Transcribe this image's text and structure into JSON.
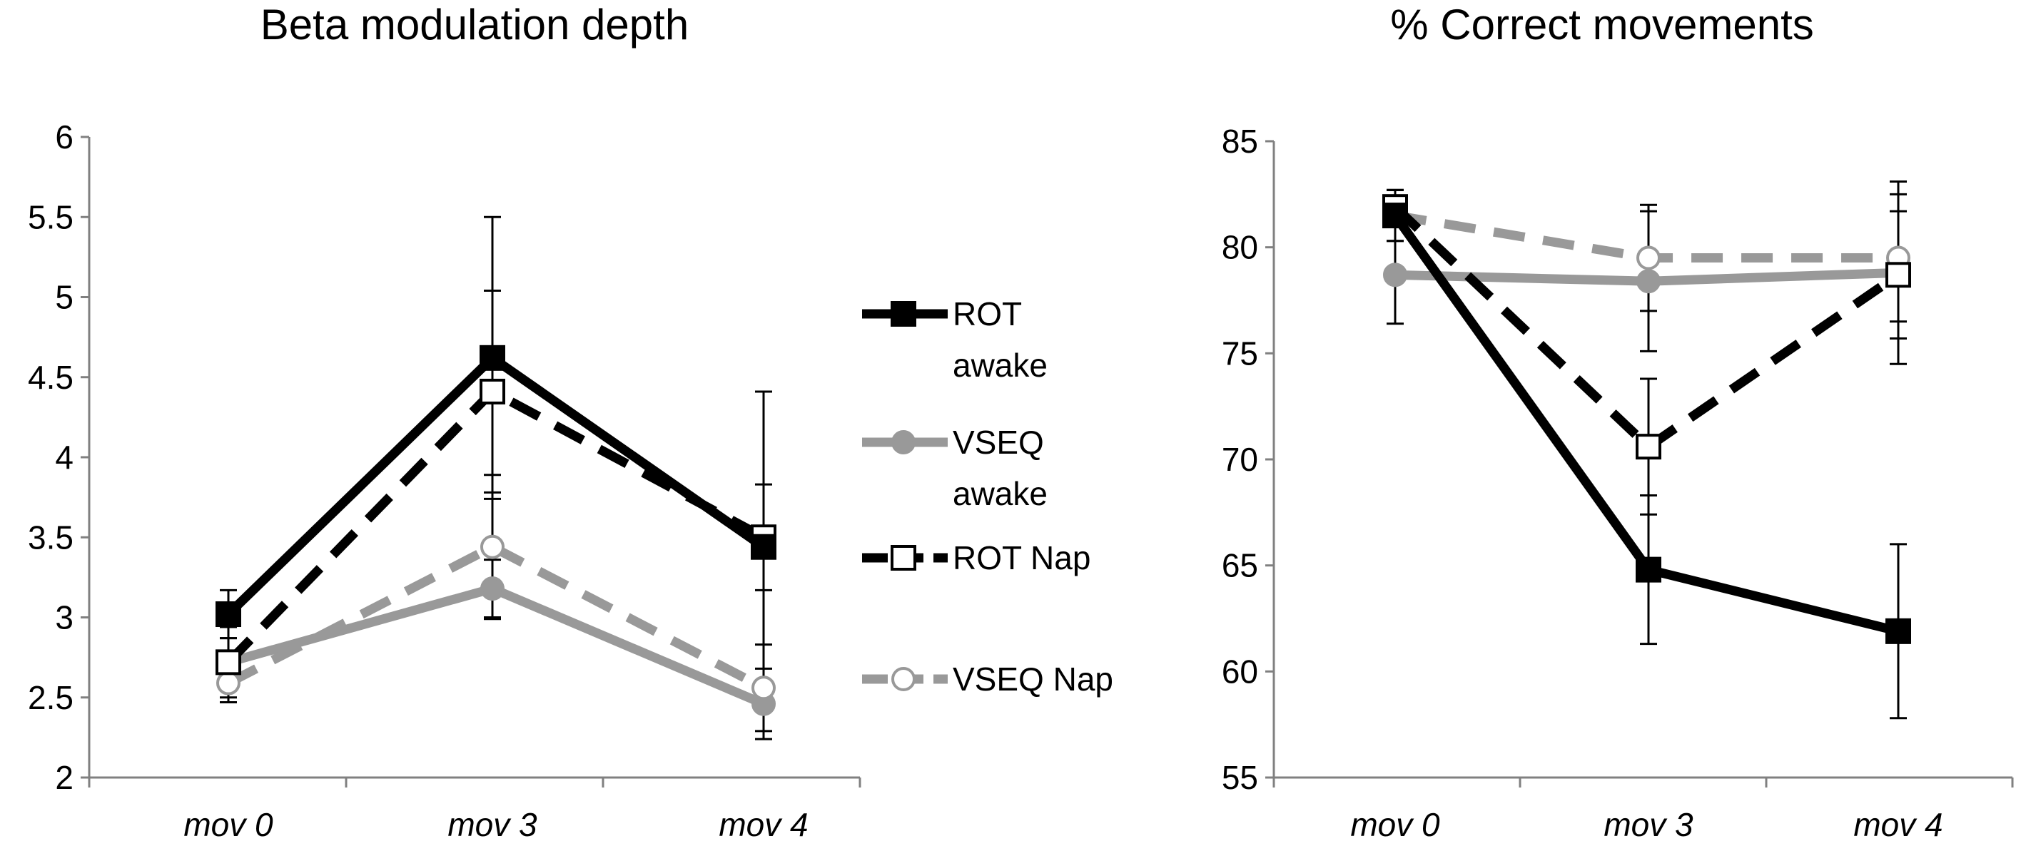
{
  "legend": [
    {
      "key": "rot_awake",
      "lines": [
        "ROT",
        "awake"
      ],
      "color": "#000000",
      "dash": false,
      "marker": "square",
      "filled": true
    },
    {
      "key": "vseq_awake",
      "lines": [
        "VSEQ",
        "awake"
      ],
      "color": "#999999",
      "dash": false,
      "marker": "circle",
      "filled": true
    },
    {
      "key": "rot_nap",
      "lines": [
        "ROT Nap"
      ],
      "color": "#000000",
      "dash": true,
      "marker": "square",
      "filled": false
    },
    {
      "key": "vseq_nap",
      "lines": [
        "VSEQ Nap"
      ],
      "color": "#999999",
      "dash": true,
      "marker": "circle",
      "filled": false
    }
  ],
  "chart_data": [
    {
      "type": "line",
      "title": "Beta modulation depth",
      "categories": [
        "mov 0",
        "mov 3",
        "mov 4"
      ],
      "ylim": [
        2,
        6
      ],
      "yticks": [
        "2",
        "2.5",
        "3",
        "3.5",
        "4",
        "4.5",
        "5",
        "5.5",
        "6"
      ],
      "series": [
        {
          "key": "vseq_awake",
          "name": "VSEQ awake",
          "values": [
            2.72,
            3.18,
            2.46
          ],
          "err": [
            0.15,
            0.18,
            0.22
          ]
        },
        {
          "key": "vseq_nap",
          "name": "VSEQ Nap",
          "values": [
            2.59,
            3.44,
            2.56
          ],
          "err": [
            0.12,
            0.45,
            0.27
          ]
        },
        {
          "key": "rot_nap",
          "name": "ROT Nap",
          "values": [
            2.72,
            4.41,
            3.5
          ],
          "err": [
            0.22,
            0.63,
            0.33
          ]
        },
        {
          "key": "rot_awake",
          "name": "ROT awake",
          "values": [
            3.02,
            4.62,
            3.44
          ],
          "err": [
            0.15,
            0.88,
            0.97
          ]
        }
      ]
    },
    {
      "type": "line",
      "title": "% Correct movements",
      "categories": [
        "mov 0",
        "mov 3",
        "mov 4"
      ],
      "ylim": [
        55,
        85
      ],
      "yticks": [
        "55",
        "60",
        "65",
        "70",
        "75",
        "80",
        "85"
      ],
      "series": [
        {
          "key": "vseq_awake",
          "name": "VSEQ awake",
          "values": [
            78.7,
            78.4,
            78.8
          ],
          "err": [
            2.3,
            3.3,
            4.3
          ]
        },
        {
          "key": "vseq_nap",
          "name": "VSEQ Nap",
          "values": [
            81.5,
            79.5,
            79.5
          ],
          "err": [
            1.2,
            2.5,
            3.0
          ]
        },
        {
          "key": "rot_nap",
          "name": "ROT Nap",
          "values": [
            81.9,
            70.6,
            78.7
          ],
          "err": [
            0.8,
            3.2,
            3.0
          ]
        },
        {
          "key": "rot_awake",
          "name": "ROT awake",
          "values": [
            81.5,
            64.8,
            61.9
          ],
          "err": [
            1.2,
            3.5,
            4.1
          ]
        }
      ]
    }
  ]
}
